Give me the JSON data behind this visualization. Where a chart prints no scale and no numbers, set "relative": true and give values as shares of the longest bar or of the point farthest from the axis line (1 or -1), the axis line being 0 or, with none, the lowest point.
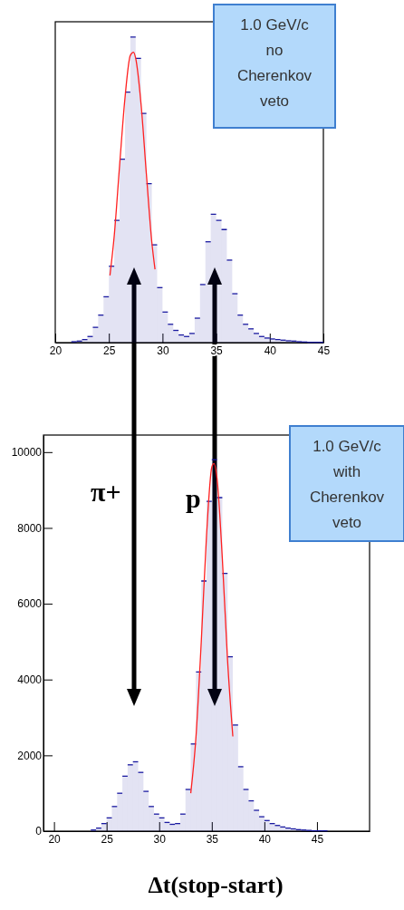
{
  "chart_data": [
    {
      "type": "histogram",
      "relative": true,
      "xlim": [
        20,
        45
      ],
      "xticks": [
        20,
        25,
        30,
        35,
        40,
        45
      ],
      "tick_labels": "x",
      "annotations": [
        "1.0 GeV/c\nno\nCherenkov\nveto"
      ],
      "series": [
        {
          "type": "histogram",
          "color": "#1a1aa0",
          "bins": [
            21.5,
            22,
            22.5,
            23,
            23.5,
            24,
            24.5,
            25,
            25.5,
            26,
            26.5,
            27,
            27.5,
            28,
            28.5,
            29,
            29.5,
            30,
            30.5,
            31,
            31.5,
            32,
            32.5,
            33,
            33.5,
            34,
            34.5,
            35,
            35.5,
            36,
            36.5,
            37,
            37.5,
            38,
            38.5,
            39,
            39.5,
            40,
            40.5,
            41,
            41.5,
            42,
            42.5,
            43,
            43.5,
            44,
            44.5,
            45
          ],
          "values": [
            0.003,
            0.005,
            0.01,
            0.02,
            0.05,
            0.09,
            0.15,
            0.25,
            0.4,
            0.6,
            0.82,
            1.0,
            0.93,
            0.75,
            0.52,
            0.32,
            0.18,
            0.1,
            0.06,
            0.04,
            0.025,
            0.02,
            0.03,
            0.08,
            0.19,
            0.33,
            0.42,
            0.4,
            0.37,
            0.27,
            0.16,
            0.09,
            0.06,
            0.045,
            0.03,
            0.02,
            0.015,
            0.012,
            0.01,
            0.008,
            0.006,
            0.005,
            0.003,
            0.002,
            0.001,
            0.001,
            0.001
          ]
        },
        {
          "type": "line",
          "color": "#ff2020",
          "x": [
            25.1,
            25.5,
            26,
            26.5,
            27,
            27.3,
            27.5,
            28,
            28.5,
            29,
            29.3
          ],
          "values": [
            0.22,
            0.35,
            0.58,
            0.8,
            0.94,
            0.95,
            0.93,
            0.78,
            0.55,
            0.33,
            0.24
          ]
        }
      ]
    },
    {
      "type": "histogram",
      "xlim": [
        19,
        50
      ],
      "xticks": [
        20,
        25,
        30,
        35,
        40,
        45
      ],
      "ylim": [
        0,
        10450
      ],
      "yticks": [
        0,
        2000,
        4000,
        6000,
        8000,
        10000
      ],
      "xlabel": "Δt(stop-start)",
      "annotations": [
        "1.0 GeV/c\nwith\nCherenkov\nveto",
        "π+",
        "p"
      ],
      "series": [
        {
          "type": "histogram",
          "color": "#1a1aa0",
          "bins": [
            23,
            23.5,
            24,
            24.5,
            25,
            25.5,
            26,
            26.5,
            27,
            27.5,
            28,
            28.5,
            29,
            29.5,
            30,
            30.5,
            31,
            31.5,
            32,
            32.5,
            33,
            33.5,
            34,
            34.5,
            35,
            35.5,
            36,
            36.5,
            37,
            37.5,
            38,
            38.5,
            39,
            39.5,
            40,
            40.5,
            41,
            41.5,
            42,
            42.5,
            43,
            43.5,
            44,
            44.5,
            45,
            45.5,
            46,
            46.5,
            47,
            47.5
          ],
          "values": [
            0,
            30,
            80,
            200,
            350,
            650,
            1000,
            1450,
            1750,
            1830,
            1550,
            1050,
            650,
            450,
            350,
            230,
            180,
            200,
            450,
            1100,
            2300,
            4200,
            6600,
            8700,
            9800,
            8800,
            6800,
            4600,
            2800,
            1700,
            1100,
            800,
            550,
            380,
            280,
            200,
            150,
            110,
            80,
            60,
            40,
            30,
            20,
            10,
            10,
            10,
            0,
            0,
            0
          ]
        },
        {
          "type": "line",
          "color": "#ff2020",
          "x": [
            33,
            33.5,
            34,
            34.5,
            35,
            35.2,
            35.5,
            36,
            36.5,
            37
          ],
          "values": [
            1000,
            2500,
            5000,
            7800,
            9600,
            9700,
            9300,
            7200,
            4500,
            2500
          ]
        }
      ]
    }
  ]
}
